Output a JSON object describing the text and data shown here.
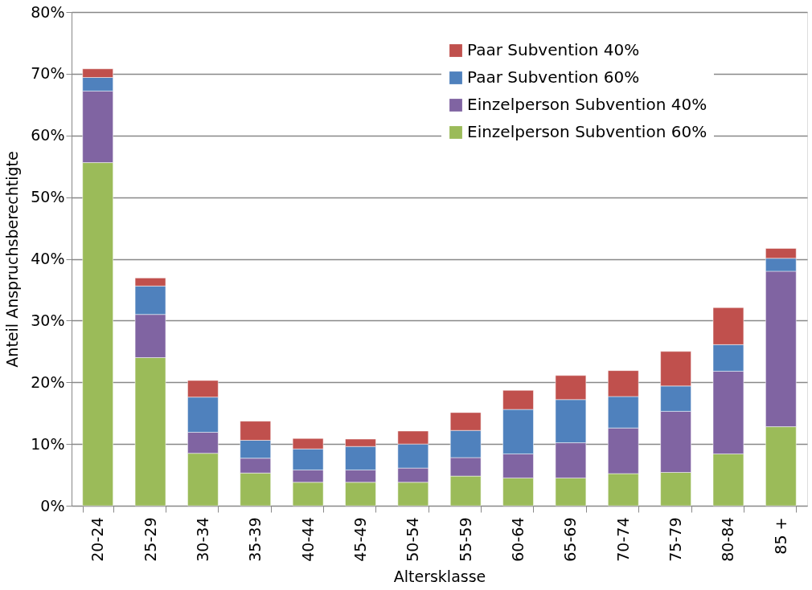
{
  "chart_data": {
    "type": "bar",
    "stacked": true,
    "xlabel": "Altersklasse",
    "ylabel": "Anteil Anspruchsberechtigte",
    "categories": [
      "20-24",
      "25-29",
      "30-34",
      "35-39",
      "40-44",
      "45-49",
      "50-54",
      "55-59",
      "60-64",
      "65-69",
      "70-74",
      "75-79",
      "80-84",
      "85 +"
    ],
    "series": [
      {
        "name": "Einzelperson Subvention 60%",
        "color": "#9bbb59",
        "values": [
          55.6,
          24.0,
          8.5,
          5.3,
          3.8,
          3.8,
          3.8,
          4.8,
          4.5,
          4.5,
          5.2,
          5.4,
          8.4,
          12.8
        ]
      },
      {
        "name": "Einzelperson Subvention 40%",
        "color": "#8064a2",
        "values": [
          11.6,
          7.0,
          3.4,
          2.4,
          2.0,
          2.0,
          2.3,
          3.0,
          3.9,
          5.7,
          7.4,
          9.9,
          13.4,
          25.2
        ]
      },
      {
        "name": "Paar Subvention 60%",
        "color": "#4f81bd",
        "values": [
          2.2,
          4.6,
          5.7,
          2.9,
          3.4,
          3.8,
          3.9,
          4.4,
          7.2,
          7.0,
          5.1,
          4.1,
          4.3,
          2.1
        ]
      },
      {
        "name": "Paar Subvention 40%",
        "color": "#c0504d",
        "values": [
          1.4,
          1.3,
          2.7,
          3.1,
          1.7,
          1.2,
          2.1,
          2.9,
          3.1,
          3.9,
          4.2,
          5.6,
          6.0,
          1.6
        ]
      }
    ],
    "ylim": [
      0,
      80
    ],
    "yticks": [
      {
        "value": 0,
        "label": "0%"
      },
      {
        "value": 10,
        "label": "10%"
      },
      {
        "value": 20,
        "label": "20%"
      },
      {
        "value": 30,
        "label": "30%"
      },
      {
        "value": 40,
        "label": "40%"
      },
      {
        "value": 50,
        "label": "50%"
      },
      {
        "value": 60,
        "label": "60%"
      },
      {
        "value": 70,
        "label": "70%"
      },
      {
        "value": 80,
        "label": "80%"
      }
    ],
    "grid": "y",
    "legend": "top right"
  }
}
